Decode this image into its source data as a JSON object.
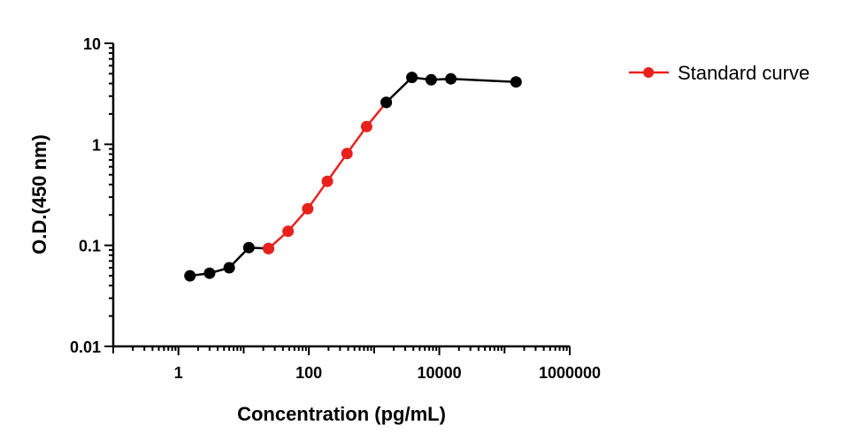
{
  "chart_data": {
    "type": "line",
    "xlabel": "Concentration (pg/mL)",
    "ylabel": "O.D.(450 nm)",
    "x_scale": "log",
    "y_scale": "log",
    "xlim": [
      0.1,
      1000000
    ],
    "ylim": [
      0.01,
      10
    ],
    "x_ticks": [
      {
        "value": 1,
        "label": "1"
      },
      {
        "value": 100,
        "label": "100"
      },
      {
        "value": 10000,
        "label": "10000"
      },
      {
        "value": 1000000,
        "label": "1000000"
      }
    ],
    "y_ticks": [
      {
        "value": 0.01,
        "label": "0.01"
      },
      {
        "value": 0.1,
        "label": "0.1"
      },
      {
        "value": 1,
        "label": "1"
      },
      {
        "value": 10,
        "label": "10"
      }
    ],
    "grid": false,
    "legend_position": "top-right",
    "series": [
      {
        "name": "",
        "color": "#000000",
        "x": [
          1.5,
          3,
          6,
          12,
          24
        ],
        "y": [
          0.05,
          0.053,
          0.06,
          0.095,
          0.093
        ]
      },
      {
        "name": "Standard curve",
        "color": "#e8211c",
        "x": [
          24,
          48,
          96,
          192,
          384,
          768,
          1536
        ],
        "y": [
          0.093,
          0.138,
          0.23,
          0.43,
          0.81,
          1.5,
          2.6
        ]
      },
      {
        "name": "",
        "color": "#000000",
        "x": [
          1536,
          3800,
          7500,
          15000,
          150000
        ],
        "y": [
          2.6,
          4.6,
          4.35,
          4.45,
          4.15
        ]
      }
    ]
  }
}
